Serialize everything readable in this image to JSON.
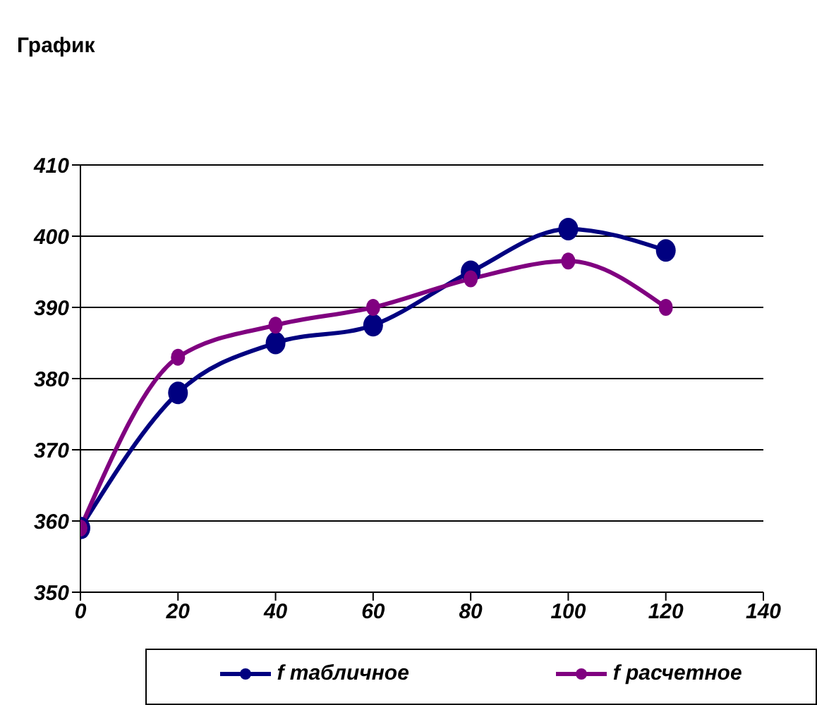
{
  "chart_data": {
    "type": "line",
    "title": "График",
    "x": [
      0,
      20,
      40,
      60,
      80,
      100,
      120
    ],
    "series": [
      {
        "name": "f табличное",
        "color": "#000080",
        "values": [
          359,
          378,
          385,
          387.5,
          395,
          401,
          398
        ]
      },
      {
        "name": "f расчетное",
        "color": "#800080",
        "values": [
          359,
          383,
          387.5,
          390,
          394,
          396.5,
          390
        ]
      }
    ],
    "xlim": [
      0,
      140
    ],
    "xticks": [
      0,
      20,
      40,
      60,
      80,
      100,
      120,
      140
    ],
    "ylim": [
      350,
      410
    ],
    "yticks": [
      350,
      360,
      370,
      380,
      390,
      400,
      410
    ],
    "grid": "y",
    "legend": "bottom",
    "marker": "circle",
    "line_style": "solid"
  }
}
